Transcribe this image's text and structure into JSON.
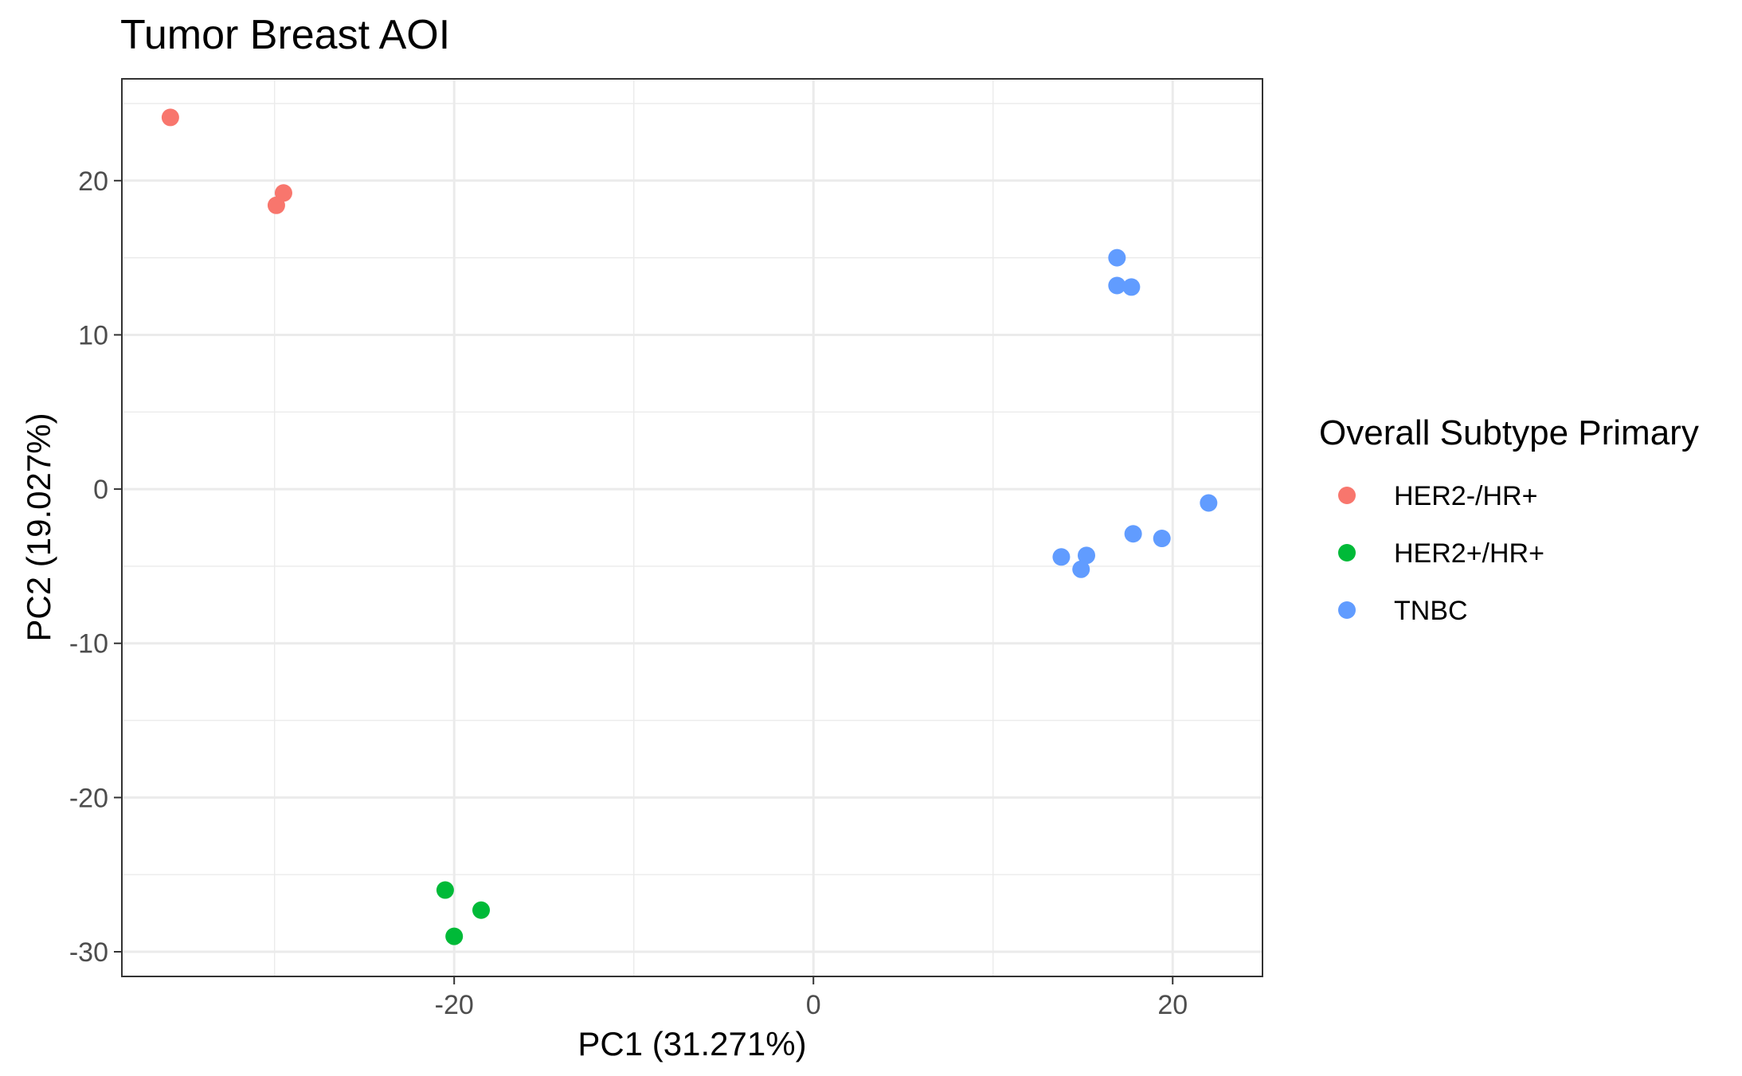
{
  "chart_data": {
    "type": "scatter",
    "title": "Tumor Breast AOI",
    "xlabel": "PC1 (31.271%)",
    "ylabel": "PC2 (19.027%)",
    "xlim": [
      -38.5,
      25
    ],
    "ylim": [
      -31.6,
      26.6
    ],
    "x_ticks": [
      -20,
      0,
      20
    ],
    "x_tick_labels": [
      "-20",
      "0",
      "20"
    ],
    "y_ticks": [
      20,
      10,
      0,
      -10,
      -20,
      -30
    ],
    "y_tick_labels": [
      "20",
      "10",
      "0",
      "-10",
      "-20",
      "-30"
    ],
    "grid": true,
    "legend": {
      "title": "Overall Subtype Primary",
      "position": "right"
    },
    "series": [
      {
        "name": "HER2-/HR+",
        "color": "#F8766D",
        "points": [
          {
            "x": -35.8,
            "y": 24.1
          },
          {
            "x": -29.9,
            "y": 18.4
          },
          {
            "x": -29.5,
            "y": 19.2
          }
        ]
      },
      {
        "name": "HER2+/HR+",
        "color": "#00BA38",
        "points": [
          {
            "x": -20.5,
            "y": -26.0
          },
          {
            "x": -20.0,
            "y": -29.0
          },
          {
            "x": -18.5,
            "y": -27.3
          }
        ]
      },
      {
        "name": "TNBC",
        "color": "#619CFF",
        "points": [
          {
            "x": 16.9,
            "y": 15.0
          },
          {
            "x": 16.9,
            "y": 13.2
          },
          {
            "x": 17.7,
            "y": 13.1
          },
          {
            "x": 22.0,
            "y": -0.9
          },
          {
            "x": 17.8,
            "y": -2.9
          },
          {
            "x": 19.4,
            "y": -3.2
          },
          {
            "x": 13.8,
            "y": -4.4
          },
          {
            "x": 15.2,
            "y": -4.3
          },
          {
            "x": 14.9,
            "y": -5.2
          }
        ]
      }
    ]
  }
}
